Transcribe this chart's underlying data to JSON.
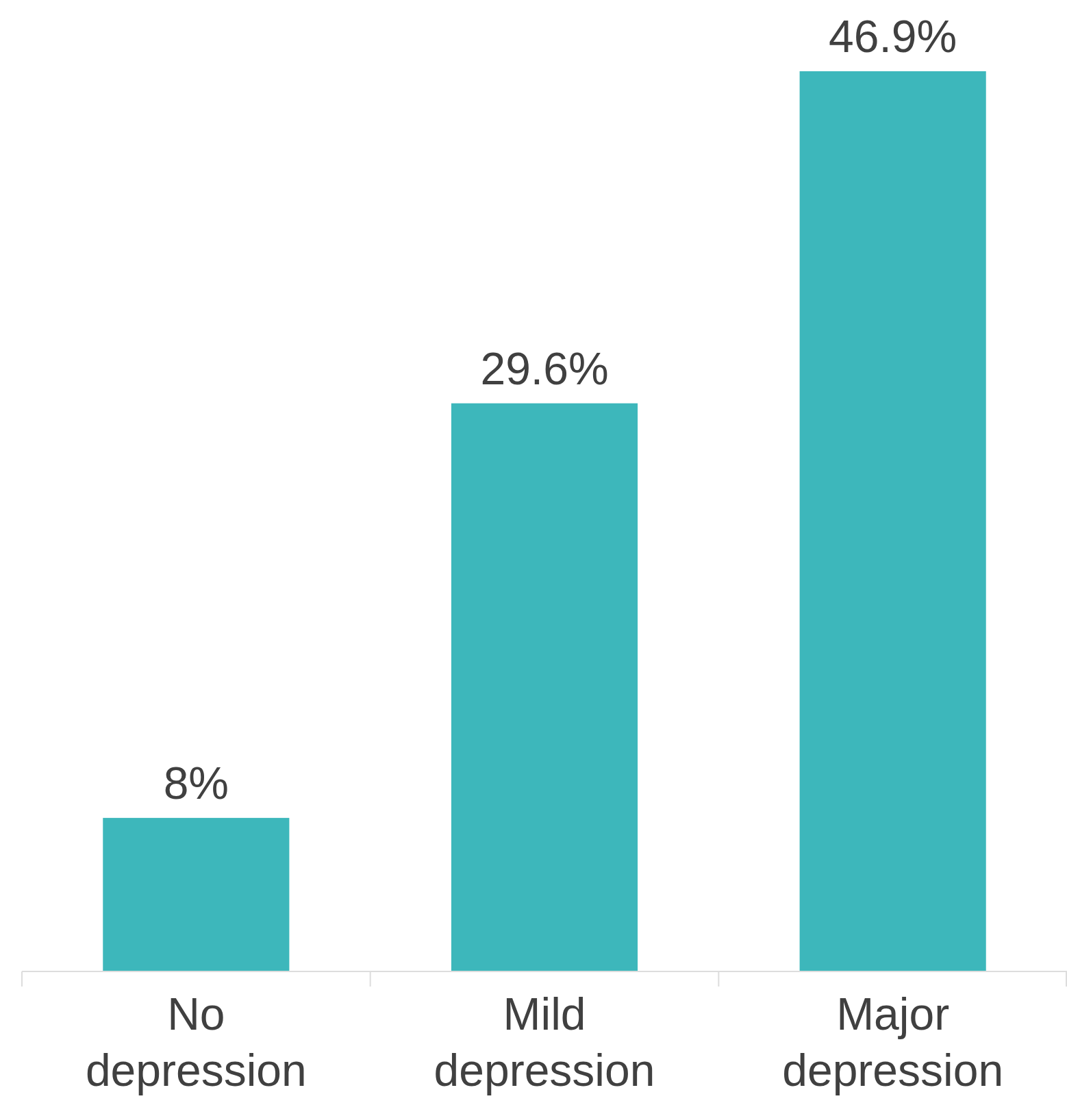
{
  "chart_data": {
    "type": "bar",
    "categories": [
      "No depression",
      "Mild depression",
      "Major depression"
    ],
    "values": [
      8,
      29.6,
      46.9
    ],
    "value_labels": [
      "8%",
      "29.6%",
      "46.9%"
    ],
    "color": "#3db7bb"
  }
}
